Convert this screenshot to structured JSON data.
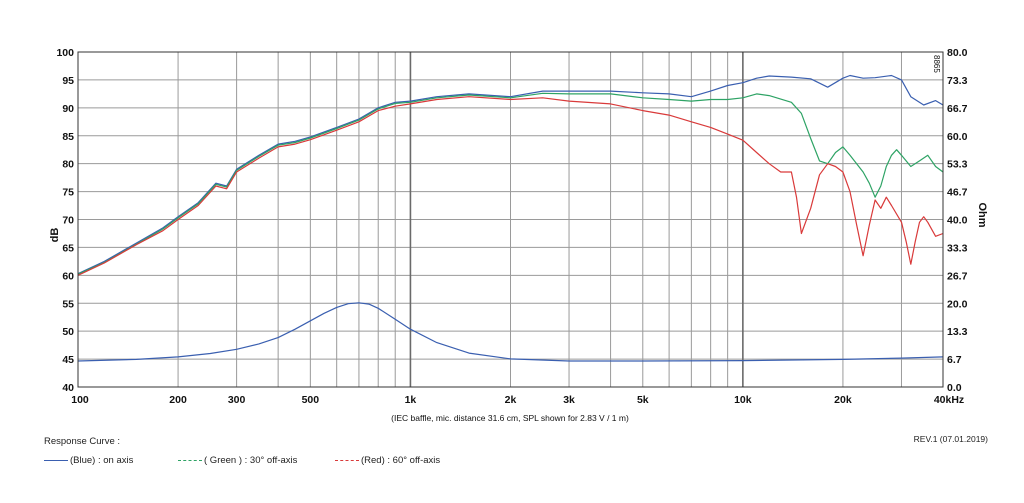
{
  "chart_data": {
    "type": "line",
    "x_scale": "log",
    "xlim": [
      100,
      40000
    ],
    "ylim_left": [
      40,
      100
    ],
    "ylim_right": [
      0.0,
      80.0
    ],
    "ylabel_left": "dB",
    "ylabel_right": "Ohm",
    "x_ticks": [
      {
        "v": 100,
        "label": "100"
      },
      {
        "v": 200,
        "label": "200"
      },
      {
        "v": 300,
        "label": "300"
      },
      {
        "v": 500,
        "label": "500"
      },
      {
        "v": 1000,
        "label": "1k"
      },
      {
        "v": 2000,
        "label": "2k"
      },
      {
        "v": 3000,
        "label": "3k"
      },
      {
        "v": 5000,
        "label": "5k"
      },
      {
        "v": 10000,
        "label": "10k"
      },
      {
        "v": 20000,
        "label": "20k"
      },
      {
        "v": 40000,
        "label": "40kHz"
      }
    ],
    "left_ticks": [
      40,
      45,
      50,
      55,
      60,
      65,
      70,
      75,
      80,
      85,
      90,
      95,
      100
    ],
    "right_ticks": [
      "0.0",
      "6.7",
      "13.3",
      "20.0",
      "26.7",
      "33.3",
      "40.0",
      "46.7",
      "53.3",
      "60.0",
      "66.7",
      "73.3",
      "80.0"
    ],
    "grid": true,
    "caption": "(IEC baffle, mic. distance 31.6 cm, SPL shown for 2.83 V / 1 m)",
    "corner_mark": "8865",
    "series": [
      {
        "color": "#3a5fb0",
        "axis": "left",
        "points": [
          [
            100,
            60.3
          ],
          [
            120,
            62.5
          ],
          [
            150,
            65.8
          ],
          [
            180,
            68.5
          ],
          [
            200,
            70.5
          ],
          [
            230,
            73
          ],
          [
            260,
            76.5
          ],
          [
            280,
            76
          ],
          [
            300,
            79
          ],
          [
            350,
            81.5
          ],
          [
            400,
            83.5
          ],
          [
            450,
            84
          ],
          [
            500,
            84.8
          ],
          [
            600,
            86.5
          ],
          [
            700,
            88
          ],
          [
            800,
            90
          ],
          [
            900,
            91
          ],
          [
            1000,
            91.2
          ],
          [
            1200,
            92
          ],
          [
            1500,
            92.5
          ],
          [
            2000,
            92
          ],
          [
            2500,
            93
          ],
          [
            3000,
            93
          ],
          [
            4000,
            93
          ],
          [
            5000,
            92.7
          ],
          [
            6000,
            92.5
          ],
          [
            7000,
            92
          ],
          [
            8000,
            93
          ],
          [
            9000,
            94
          ],
          [
            10000,
            94.5
          ],
          [
            11000,
            95.3
          ],
          [
            12000,
            95.7
          ],
          [
            14000,
            95.5
          ],
          [
            16000,
            95.2
          ],
          [
            18000,
            93.7
          ],
          [
            20000,
            95.3
          ],
          [
            21000,
            95.8
          ],
          [
            23000,
            95.3
          ],
          [
            25000,
            95.4
          ],
          [
            28000,
            95.8
          ],
          [
            30000,
            95
          ],
          [
            32000,
            92
          ],
          [
            35000,
            90.5
          ],
          [
            38000,
            91.3
          ],
          [
            40000,
            90.5
          ]
        ]
      },
      {
        "color": "#2ea365",
        "axis": "left",
        "points": [
          [
            100,
            60.2
          ],
          [
            120,
            62.3
          ],
          [
            150,
            65.6
          ],
          [
            180,
            68.3
          ],
          [
            200,
            70.3
          ],
          [
            230,
            72.8
          ],
          [
            260,
            76.3
          ],
          [
            280,
            75.8
          ],
          [
            300,
            78.8
          ],
          [
            350,
            81.3
          ],
          [
            400,
            83.3
          ],
          [
            450,
            83.8
          ],
          [
            500,
            84.6
          ],
          [
            600,
            86.3
          ],
          [
            700,
            87.8
          ],
          [
            800,
            89.8
          ],
          [
            900,
            90.8
          ],
          [
            1000,
            91
          ],
          [
            1200,
            91.8
          ],
          [
            1500,
            92.3
          ],
          [
            2000,
            91.8
          ],
          [
            2500,
            92.6
          ],
          [
            3000,
            92.5
          ],
          [
            4000,
            92.5
          ],
          [
            5000,
            91.8
          ],
          [
            6000,
            91.5
          ],
          [
            7000,
            91.2
          ],
          [
            8000,
            91.5
          ],
          [
            9000,
            91.5
          ],
          [
            10000,
            91.8
          ],
          [
            11000,
            92.5
          ],
          [
            12000,
            92.2
          ],
          [
            14000,
            91
          ],
          [
            15000,
            89
          ],
          [
            16000,
            84.5
          ],
          [
            17000,
            80.5
          ],
          [
            18000,
            80
          ],
          [
            19000,
            82
          ],
          [
            20000,
            83
          ],
          [
            21000,
            81.5
          ],
          [
            23000,
            78.5
          ],
          [
            24000,
            76.5
          ],
          [
            25000,
            74
          ],
          [
            26000,
            76
          ],
          [
            27000,
            79.5
          ],
          [
            28000,
            81.5
          ],
          [
            29000,
            82.5
          ],
          [
            30000,
            81.5
          ],
          [
            32000,
            79.5
          ],
          [
            34000,
            80.5
          ],
          [
            36000,
            81.5
          ],
          [
            38000,
            79.5
          ],
          [
            40000,
            78.5
          ]
        ]
      },
      {
        "color": "#d93a3a",
        "axis": "left",
        "points": [
          [
            100,
            60
          ],
          [
            120,
            62.2
          ],
          [
            150,
            65.5
          ],
          [
            180,
            68
          ],
          [
            200,
            70
          ],
          [
            230,
            72.5
          ],
          [
            260,
            76
          ],
          [
            280,
            75.5
          ],
          [
            300,
            78.5
          ],
          [
            350,
            81
          ],
          [
            400,
            83
          ],
          [
            450,
            83.5
          ],
          [
            500,
            84.3
          ],
          [
            600,
            86
          ],
          [
            700,
            87.5
          ],
          [
            800,
            89.5
          ],
          [
            900,
            90.3
          ],
          [
            1000,
            90.7
          ],
          [
            1200,
            91.5
          ],
          [
            1500,
            92
          ],
          [
            2000,
            91.5
          ],
          [
            2500,
            91.8
          ],
          [
            3000,
            91.2
          ],
          [
            4000,
            90.7
          ],
          [
            5000,
            89.5
          ],
          [
            6000,
            88.7
          ],
          [
            7000,
            87.5
          ],
          [
            8000,
            86.5
          ],
          [
            9000,
            85.3
          ],
          [
            10000,
            84.2
          ],
          [
            11000,
            82
          ],
          [
            12000,
            80
          ],
          [
            13000,
            78.5
          ],
          [
            14000,
            78.5
          ],
          [
            14500,
            74
          ],
          [
            15000,
            67.5
          ],
          [
            16000,
            72
          ],
          [
            17000,
            78
          ],
          [
            18000,
            80
          ],
          [
            19000,
            79.5
          ],
          [
            20000,
            78.5
          ],
          [
            21000,
            75
          ],
          [
            22000,
            69
          ],
          [
            23000,
            63.5
          ],
          [
            24000,
            69
          ],
          [
            25000,
            73.5
          ],
          [
            26000,
            72
          ],
          [
            27000,
            74
          ],
          [
            28000,
            72.5
          ],
          [
            30000,
            69.5
          ],
          [
            31000,
            66
          ],
          [
            32000,
            62
          ],
          [
            33000,
            66
          ],
          [
            34000,
            69.5
          ],
          [
            35000,
            70.5
          ],
          [
            36000,
            69.5
          ],
          [
            38000,
            67
          ],
          [
            40000,
            67.5
          ]
        ]
      },
      {
        "color": "#3a5fb0",
        "axis": "right",
        "points": [
          [
            100,
            6.2
          ],
          [
            150,
            6.6
          ],
          [
            200,
            7.2
          ],
          [
            250,
            8
          ],
          [
            300,
            9
          ],
          [
            350,
            10.3
          ],
          [
            400,
            11.8
          ],
          [
            450,
            13.8
          ],
          [
            500,
            15.8
          ],
          [
            550,
            17.6
          ],
          [
            600,
            19
          ],
          [
            650,
            19.9
          ],
          [
            700,
            20.1
          ],
          [
            750,
            19.8
          ],
          [
            800,
            18.8
          ],
          [
            900,
            16.2
          ],
          [
            1000,
            13.8
          ],
          [
            1200,
            10.6
          ],
          [
            1500,
            8.1
          ],
          [
            2000,
            6.7
          ],
          [
            3000,
            6.2
          ],
          [
            5000,
            6.2
          ],
          [
            10000,
            6.3
          ],
          [
            20000,
            6.6
          ],
          [
            30000,
            6.9
          ],
          [
            40000,
            7.2
          ]
        ]
      }
    ]
  },
  "legend": {
    "title": "Response Curve :",
    "items": [
      {
        "label": "(Blue) : on axis",
        "color": "#3a5fb0"
      },
      {
        "label": "( Green ) : 30° off-axis",
        "color": "#2ea365"
      },
      {
        "label": "(Red) : 60° off-axis",
        "color": "#d93a3a"
      }
    ]
  },
  "revision": "REV.1 (07.01.2019)"
}
